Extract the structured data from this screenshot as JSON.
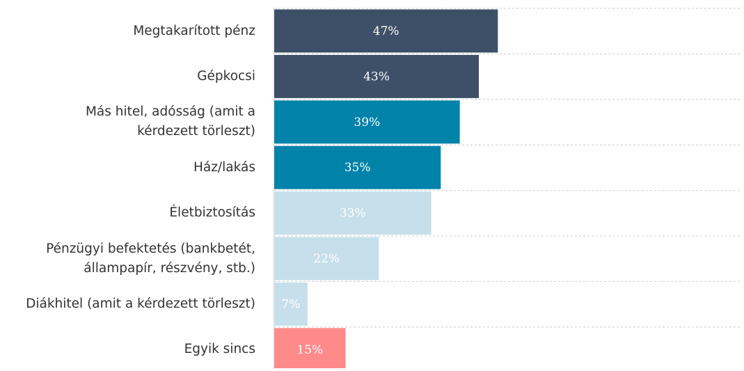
{
  "chart_data": {
    "type": "bar",
    "orientation": "horizontal",
    "categories": [
      "Megtakarított pénz",
      "Gépkocsi",
      "Más hitel, adósság (amit a kérdezett törleszt)",
      "Ház/lakás",
      "Életbiztosítás",
      "Pénzügyi befektetés (bankbetét, állampapír, részvény, stb.)",
      "Diákhitel (amit a kérdezett törleszt)",
      "Egyik sincs"
    ],
    "values": [
      47,
      43,
      39,
      35,
      33,
      22,
      7,
      15
    ],
    "value_labels": [
      "47%",
      "43%",
      "39%",
      "35%",
      "33%",
      "22%",
      "7%",
      "15%"
    ],
    "colors": [
      "#3e5068",
      "#3e5068",
      "#0082a9",
      "#0082a9",
      "#c6dfea",
      "#c6dfea",
      "#c6dfea",
      "#ff8a8a"
    ],
    "xlim": [
      0,
      98
    ]
  }
}
